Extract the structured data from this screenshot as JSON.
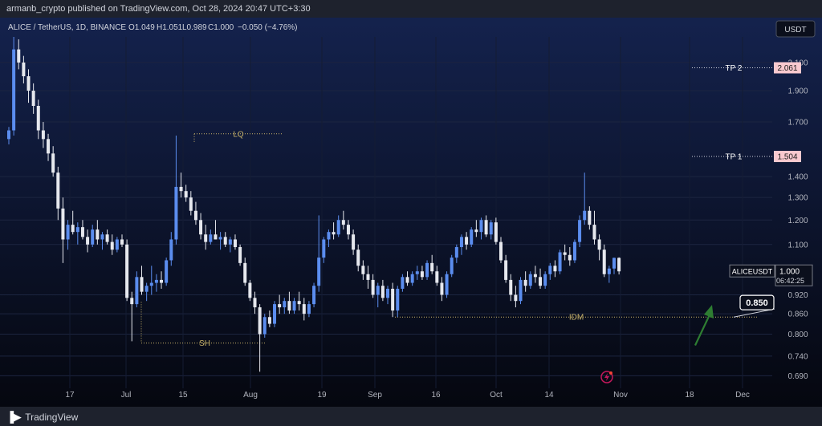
{
  "header": {
    "published_text": "armanb_crypto published on TradingView.com, Oct 28, 2024 20:47 UTC+3:30"
  },
  "legend": {
    "symbol": "ALICE / TetherUS, 1D, BINANCE",
    "open": "O1.049",
    "high": "H1.051",
    "low": "L0.989",
    "close": "C1.000",
    "change": "−0.050 (−4.76%)"
  },
  "currency_button": "USDT",
  "footer": {
    "brand": "TradingView"
  },
  "colors": {
    "background": "#0b0f1c",
    "up": "#5b8def",
    "down": "#e6e8ee",
    "annotation": "#c9b36a",
    "arrow": "#2e7d32",
    "tp_label_bg": "#f8c9cf"
  },
  "chart_data": {
    "type": "candlestick",
    "y_scale": "log",
    "ylim": [
      0.66,
      2.3
    ],
    "y_ticks": [
      "2.100",
      "1.900",
      "1.700",
      "1.400",
      "1.300",
      "1.200",
      "1.100",
      "0.920",
      "0.860",
      "0.800",
      "0.740",
      "0.690"
    ],
    "x_ticks": [
      "17",
      "Jul",
      "15",
      "Aug",
      "19",
      "Sep",
      "16",
      "Oct",
      "14",
      "Nov",
      "18",
      "Dec"
    ],
    "price_labels": [
      {
        "name": "TP 2",
        "price": 2.061,
        "label": "2.061"
      },
      {
        "name": "TP 1",
        "price": 1.504,
        "label": "1.504"
      }
    ],
    "current_price": {
      "symbol": "ALICEUSDT",
      "price": "1.000",
      "countdown": "06:42:25"
    },
    "annotations": [
      {
        "text": "LQ",
        "price": 1.63
      },
      {
        "text": "SH",
        "price": 0.775
      },
      {
        "text": "IDM",
        "price": 0.85
      }
    ],
    "target_label": "0.850",
    "candles": [
      {
        "o": 1.6,
        "h": 1.67,
        "l": 1.57,
        "c": 1.65
      },
      {
        "o": 1.65,
        "h": 2.3,
        "l": 1.62,
        "c": 2.2
      },
      {
        "o": 2.2,
        "h": 2.28,
        "l": 2.05,
        "c": 2.1
      },
      {
        "o": 2.1,
        "h": 2.15,
        "l": 1.95,
        "c": 2.0
      },
      {
        "o": 2.0,
        "h": 2.05,
        "l": 1.82,
        "c": 1.9
      },
      {
        "o": 1.9,
        "h": 1.95,
        "l": 1.75,
        "c": 1.8
      },
      {
        "o": 1.8,
        "h": 1.84,
        "l": 1.6,
        "c": 1.65
      },
      {
        "o": 1.65,
        "h": 1.7,
        "l": 1.55,
        "c": 1.6
      },
      {
        "o": 1.6,
        "h": 1.63,
        "l": 1.48,
        "c": 1.52
      },
      {
        "o": 1.52,
        "h": 1.56,
        "l": 1.4,
        "c": 1.42
      },
      {
        "o": 1.42,
        "h": 1.45,
        "l": 1.2,
        "c": 1.25
      },
      {
        "o": 1.25,
        "h": 1.3,
        "l": 1.03,
        "c": 1.12
      },
      {
        "o": 1.12,
        "h": 1.2,
        "l": 1.08,
        "c": 1.18
      },
      {
        "o": 1.18,
        "h": 1.24,
        "l": 1.14,
        "c": 1.15
      },
      {
        "o": 1.15,
        "h": 1.19,
        "l": 1.1,
        "c": 1.17
      },
      {
        "o": 1.17,
        "h": 1.2,
        "l": 1.12,
        "c": 1.13
      },
      {
        "o": 1.13,
        "h": 1.16,
        "l": 1.07,
        "c": 1.1
      },
      {
        "o": 1.1,
        "h": 1.18,
        "l": 1.09,
        "c": 1.16
      },
      {
        "o": 1.16,
        "h": 1.2,
        "l": 1.1,
        "c": 1.12
      },
      {
        "o": 1.12,
        "h": 1.15,
        "l": 1.08,
        "c": 1.14
      },
      {
        "o": 1.14,
        "h": 1.16,
        "l": 1.1,
        "c": 1.11
      },
      {
        "o": 1.11,
        "h": 1.14,
        "l": 1.06,
        "c": 1.08
      },
      {
        "o": 1.08,
        "h": 1.13,
        "l": 1.07,
        "c": 1.12
      },
      {
        "o": 1.12,
        "h": 1.14,
        "l": 1.09,
        "c": 1.1
      },
      {
        "o": 1.1,
        "h": 1.12,
        "l": 0.9,
        "c": 0.91
      },
      {
        "o": 0.91,
        "h": 0.93,
        "l": 0.78,
        "c": 0.89
      },
      {
        "o": 0.89,
        "h": 1.0,
        "l": 0.88,
        "c": 0.98
      },
      {
        "o": 0.98,
        "h": 1.02,
        "l": 0.92,
        "c": 0.93
      },
      {
        "o": 0.93,
        "h": 0.96,
        "l": 0.9,
        "c": 0.95
      },
      {
        "o": 0.95,
        "h": 1.02,
        "l": 0.92,
        "c": 0.96
      },
      {
        "o": 0.96,
        "h": 0.99,
        "l": 0.93,
        "c": 0.97
      },
      {
        "o": 0.97,
        "h": 1.0,
        "l": 0.94,
        "c": 0.96
      },
      {
        "o": 0.96,
        "h": 1.05,
        "l": 0.95,
        "c": 1.04
      },
      {
        "o": 1.04,
        "h": 1.15,
        "l": 1.02,
        "c": 1.12
      },
      {
        "o": 1.12,
        "h": 1.62,
        "l": 1.1,
        "c": 1.35
      },
      {
        "o": 1.35,
        "h": 1.42,
        "l": 1.3,
        "c": 1.33
      },
      {
        "o": 1.33,
        "h": 1.36,
        "l": 1.28,
        "c": 1.3
      },
      {
        "o": 1.3,
        "h": 1.33,
        "l": 1.22,
        "c": 1.24
      },
      {
        "o": 1.24,
        "h": 1.28,
        "l": 1.18,
        "c": 1.2
      },
      {
        "o": 1.2,
        "h": 1.23,
        "l": 1.12,
        "c": 1.14
      },
      {
        "o": 1.14,
        "h": 1.18,
        "l": 1.08,
        "c": 1.11
      },
      {
        "o": 1.11,
        "h": 1.16,
        "l": 1.1,
        "c": 1.14
      },
      {
        "o": 1.14,
        "h": 1.2,
        "l": 1.12,
        "c": 1.12
      },
      {
        "o": 1.12,
        "h": 1.15,
        "l": 1.08,
        "c": 1.13
      },
      {
        "o": 1.13,
        "h": 1.15,
        "l": 1.09,
        "c": 1.1
      },
      {
        "o": 1.1,
        "h": 1.13,
        "l": 1.07,
        "c": 1.12
      },
      {
        "o": 1.12,
        "h": 1.14,
        "l": 1.08,
        "c": 1.09
      },
      {
        "o": 1.09,
        "h": 1.1,
        "l": 1.02,
        "c": 1.03
      },
      {
        "o": 1.03,
        "h": 1.05,
        "l": 0.95,
        "c": 0.96
      },
      {
        "o": 0.96,
        "h": 0.97,
        "l": 0.9,
        "c": 0.91
      },
      {
        "o": 0.91,
        "h": 0.93,
        "l": 0.86,
        "c": 0.88
      },
      {
        "o": 0.88,
        "h": 0.89,
        "l": 0.7,
        "c": 0.8
      },
      {
        "o": 0.8,
        "h": 0.86,
        "l": 0.79,
        "c": 0.85
      },
      {
        "o": 0.85,
        "h": 0.87,
        "l": 0.82,
        "c": 0.83
      },
      {
        "o": 0.83,
        "h": 0.9,
        "l": 0.82,
        "c": 0.89
      },
      {
        "o": 0.89,
        "h": 0.92,
        "l": 0.86,
        "c": 0.88
      },
      {
        "o": 0.88,
        "h": 0.91,
        "l": 0.86,
        "c": 0.9
      },
      {
        "o": 0.9,
        "h": 0.93,
        "l": 0.86,
        "c": 0.87
      },
      {
        "o": 0.87,
        "h": 0.91,
        "l": 0.86,
        "c": 0.9
      },
      {
        "o": 0.9,
        "h": 0.93,
        "l": 0.87,
        "c": 0.89
      },
      {
        "o": 0.89,
        "h": 0.91,
        "l": 0.84,
        "c": 0.86
      },
      {
        "o": 0.86,
        "h": 0.9,
        "l": 0.85,
        "c": 0.89
      },
      {
        "o": 0.89,
        "h": 0.96,
        "l": 0.88,
        "c": 0.95
      },
      {
        "o": 0.95,
        "h": 1.22,
        "l": 0.93,
        "c": 1.05
      },
      {
        "o": 1.05,
        "h": 1.13,
        "l": 1.03,
        "c": 1.12
      },
      {
        "o": 1.12,
        "h": 1.16,
        "l": 1.09,
        "c": 1.15
      },
      {
        "o": 1.15,
        "h": 1.19,
        "l": 1.12,
        "c": 1.14
      },
      {
        "o": 1.14,
        "h": 1.22,
        "l": 1.13,
        "c": 1.2
      },
      {
        "o": 1.2,
        "h": 1.24,
        "l": 1.16,
        "c": 1.18
      },
      {
        "o": 1.18,
        "h": 1.2,
        "l": 1.12,
        "c": 1.14
      },
      {
        "o": 1.14,
        "h": 1.16,
        "l": 1.06,
        "c": 1.08
      },
      {
        "o": 1.08,
        "h": 1.1,
        "l": 1.0,
        "c": 1.02
      },
      {
        "o": 1.02,
        "h": 1.04,
        "l": 0.97,
        "c": 0.99
      },
      {
        "o": 0.99,
        "h": 1.02,
        "l": 0.94,
        "c": 0.97
      },
      {
        "o": 0.97,
        "h": 0.99,
        "l": 0.91,
        "c": 0.92
      },
      {
        "o": 0.92,
        "h": 0.96,
        "l": 0.88,
        "c": 0.95
      },
      {
        "o": 0.95,
        "h": 0.97,
        "l": 0.9,
        "c": 0.91
      },
      {
        "o": 0.91,
        "h": 0.95,
        "l": 0.89,
        "c": 0.94
      },
      {
        "o": 0.94,
        "h": 0.96,
        "l": 0.85,
        "c": 0.87
      },
      {
        "o": 0.87,
        "h": 0.95,
        "l": 0.85,
        "c": 0.94
      },
      {
        "o": 0.94,
        "h": 0.99,
        "l": 0.93,
        "c": 0.98
      },
      {
        "o": 0.98,
        "h": 1.0,
        "l": 0.95,
        "c": 0.96
      },
      {
        "o": 0.96,
        "h": 1.0,
        "l": 0.95,
        "c": 0.99
      },
      {
        "o": 0.99,
        "h": 1.02,
        "l": 0.97,
        "c": 1.0
      },
      {
        "o": 1.0,
        "h": 1.02,
        "l": 0.97,
        "c": 0.98
      },
      {
        "o": 0.98,
        "h": 1.04,
        "l": 0.97,
        "c": 1.03
      },
      {
        "o": 1.03,
        "h": 1.06,
        "l": 0.99,
        "c": 1.0
      },
      {
        "o": 1.0,
        "h": 1.02,
        "l": 0.95,
        "c": 0.96
      },
      {
        "o": 0.96,
        "h": 0.98,
        "l": 0.9,
        "c": 0.92
      },
      {
        "o": 0.92,
        "h": 1.0,
        "l": 0.91,
        "c": 0.99
      },
      {
        "o": 0.99,
        "h": 1.06,
        "l": 0.98,
        "c": 1.05
      },
      {
        "o": 1.05,
        "h": 1.1,
        "l": 1.03,
        "c": 1.09
      },
      {
        "o": 1.09,
        "h": 1.14,
        "l": 1.06,
        "c": 1.13
      },
      {
        "o": 1.13,
        "h": 1.15,
        "l": 1.08,
        "c": 1.1
      },
      {
        "o": 1.1,
        "h": 1.17,
        "l": 1.09,
        "c": 1.16
      },
      {
        "o": 1.16,
        "h": 1.2,
        "l": 1.13,
        "c": 1.15
      },
      {
        "o": 1.15,
        "h": 1.21,
        "l": 1.12,
        "c": 1.2
      },
      {
        "o": 1.2,
        "h": 1.22,
        "l": 1.13,
        "c": 1.14
      },
      {
        "o": 1.14,
        "h": 1.2,
        "l": 1.12,
        "c": 1.19
      },
      {
        "o": 1.19,
        "h": 1.21,
        "l": 1.1,
        "c": 1.11
      },
      {
        "o": 1.11,
        "h": 1.13,
        "l": 1.03,
        "c": 1.04
      },
      {
        "o": 1.04,
        "h": 1.06,
        "l": 0.96,
        "c": 0.97
      },
      {
        "o": 0.97,
        "h": 0.99,
        "l": 0.9,
        "c": 0.92
      },
      {
        "o": 0.92,
        "h": 0.95,
        "l": 0.88,
        "c": 0.9
      },
      {
        "o": 0.9,
        "h": 0.98,
        "l": 0.89,
        "c": 0.97
      },
      {
        "o": 0.97,
        "h": 1.0,
        "l": 0.93,
        "c": 0.95
      },
      {
        "o": 0.95,
        "h": 1.0,
        "l": 0.94,
        "c": 0.99
      },
      {
        "o": 0.99,
        "h": 1.02,
        "l": 0.96,
        "c": 0.98
      },
      {
        "o": 0.98,
        "h": 1.01,
        "l": 0.94,
        "c": 0.95
      },
      {
        "o": 0.95,
        "h": 1.0,
        "l": 0.94,
        "c": 0.99
      },
      {
        "o": 0.99,
        "h": 1.03,
        "l": 0.97,
        "c": 1.02
      },
      {
        "o": 1.02,
        "h": 1.04,
        "l": 0.98,
        "c": 1.0
      },
      {
        "o": 1.0,
        "h": 1.08,
        "l": 0.99,
        "c": 1.07
      },
      {
        "o": 1.07,
        "h": 1.1,
        "l": 1.04,
        "c": 1.06
      },
      {
        "o": 1.06,
        "h": 1.09,
        "l": 1.02,
        "c": 1.04
      },
      {
        "o": 1.04,
        "h": 1.12,
        "l": 1.03,
        "c": 1.11
      },
      {
        "o": 1.11,
        "h": 1.22,
        "l": 1.09,
        "c": 1.2
      },
      {
        "o": 1.2,
        "h": 1.42,
        "l": 1.18,
        "c": 1.24
      },
      {
        "o": 1.24,
        "h": 1.26,
        "l": 1.16,
        "c": 1.18
      },
      {
        "o": 1.18,
        "h": 1.24,
        "l": 1.1,
        "c": 1.12
      },
      {
        "o": 1.12,
        "h": 1.14,
        "l": 1.04,
        "c": 1.08
      },
      {
        "o": 1.08,
        "h": 1.1,
        "l": 0.98,
        "c": 0.99
      },
      {
        "o": 0.99,
        "h": 1.02,
        "l": 0.96,
        "c": 1.01
      },
      {
        "o": 1.01,
        "h": 1.05,
        "l": 0.99,
        "c": 1.049
      },
      {
        "o": 1.049,
        "h": 1.051,
        "l": 0.989,
        "c": 1.0
      }
    ]
  }
}
